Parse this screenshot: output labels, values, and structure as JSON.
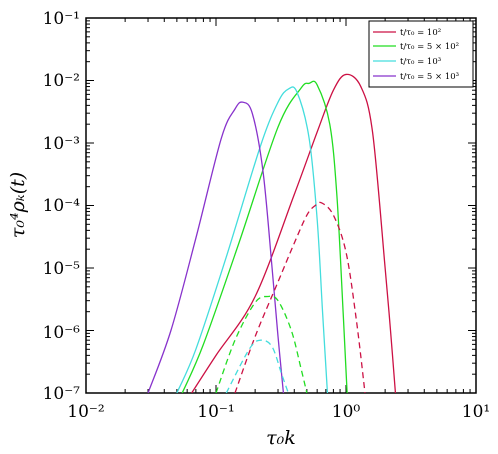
{
  "chart_data": {
    "type": "line",
    "xlabel": "τ₀k",
    "ylabel": "τ₀⁴ρₖ(t)",
    "xscale": "log",
    "yscale": "log",
    "xlim": [
      0.01,
      10
    ],
    "ylim": [
      1e-07,
      0.1
    ],
    "x_tick_labels": [
      "10⁻²",
      "10⁻¹",
      "10⁰",
      "10¹"
    ],
    "y_tick_labels": [
      "10⁻⁷",
      "10⁻⁶",
      "10⁻⁵",
      "10⁻⁴",
      "10⁻³",
      "10⁻²",
      "10⁻¹"
    ],
    "legend_position": "top-right",
    "series": [
      {
        "name": "t/τ₀ = 10²",
        "color": "#cc1144",
        "style": "solid",
        "x": [
          0.065,
          0.1,
          0.2,
          0.4,
          0.6,
          0.8,
          1.0,
          1.3,
          1.6,
          2.0,
          2.2,
          2.4
        ],
        "y": [
          1e-07,
          4e-07,
          3.5e-06,
          0.00015,
          0.0015,
          0.007,
          0.0125,
          0.008,
          0.0015,
          1e-05,
          1e-06,
          1e-07
        ]
      },
      {
        "name": "t/τ₀ = 5 × 10²",
        "color": "#22dd22",
        "style": "solid",
        "x": [
          0.055,
          0.08,
          0.15,
          0.3,
          0.45,
          0.52,
          0.6,
          0.75,
          0.85,
          0.95,
          1.02
        ],
        "y": [
          1e-07,
          6e-07,
          2.5e-05,
          0.0018,
          0.0075,
          0.009,
          0.0085,
          0.002,
          0.00015,
          2e-06,
          1e-07
        ]
      },
      {
        "name": "t/τ₀ = 10³",
        "color": "#44dddd",
        "style": "solid",
        "x": [
          0.05,
          0.07,
          0.12,
          0.22,
          0.3,
          0.36,
          0.42,
          0.52,
          0.6,
          0.66,
          0.72
        ],
        "y": [
          1e-07,
          5e-07,
          1.5e-05,
          0.0009,
          0.0045,
          0.0073,
          0.0065,
          0.0012,
          6e-05,
          2e-06,
          1e-07
        ]
      },
      {
        "name": "t/τ₀ = 5 × 10³",
        "color": "#8833cc",
        "style": "solid",
        "x": [
          0.03,
          0.045,
          0.07,
          0.11,
          0.14,
          0.16,
          0.19,
          0.23,
          0.27,
          0.3,
          0.33
        ],
        "y": [
          1e-07,
          1e-06,
          3e-05,
          0.0012,
          0.0035,
          0.0045,
          0.003,
          0.00035,
          1e-05,
          8e-07,
          1e-07
        ]
      },
      {
        "name": "",
        "color": "#cc1144",
        "style": "dashed",
        "x": [
          0.14,
          0.2,
          0.3,
          0.4,
          0.5,
          0.58,
          0.65,
          0.8,
          1.0,
          1.2,
          1.4
        ],
        "y": [
          1e-07,
          8e-07,
          6e-06,
          2.5e-05,
          7e-05,
          0.0001,
          0.00011,
          7e-05,
          1.8e-05,
          1.5e-06,
          1e-07
        ]
      },
      {
        "name": "",
        "color": "#22dd22",
        "style": "dashed",
        "x": [
          0.1,
          0.14,
          0.2,
          0.25,
          0.3,
          0.38,
          0.45,
          0.5
        ],
        "y": [
          1e-07,
          7e-07,
          2.8e-06,
          3.5e-06,
          3e-06,
          1e-06,
          2.5e-07,
          1e-07
        ]
      },
      {
        "name": "",
        "color": "#44dddd",
        "style": "dashed",
        "x": [
          0.12,
          0.18,
          0.22,
          0.27,
          0.32,
          0.36
        ],
        "y": [
          1e-07,
          5e-07,
          7e-07,
          5.5e-07,
          2e-07,
          1e-07
        ]
      }
    ]
  }
}
